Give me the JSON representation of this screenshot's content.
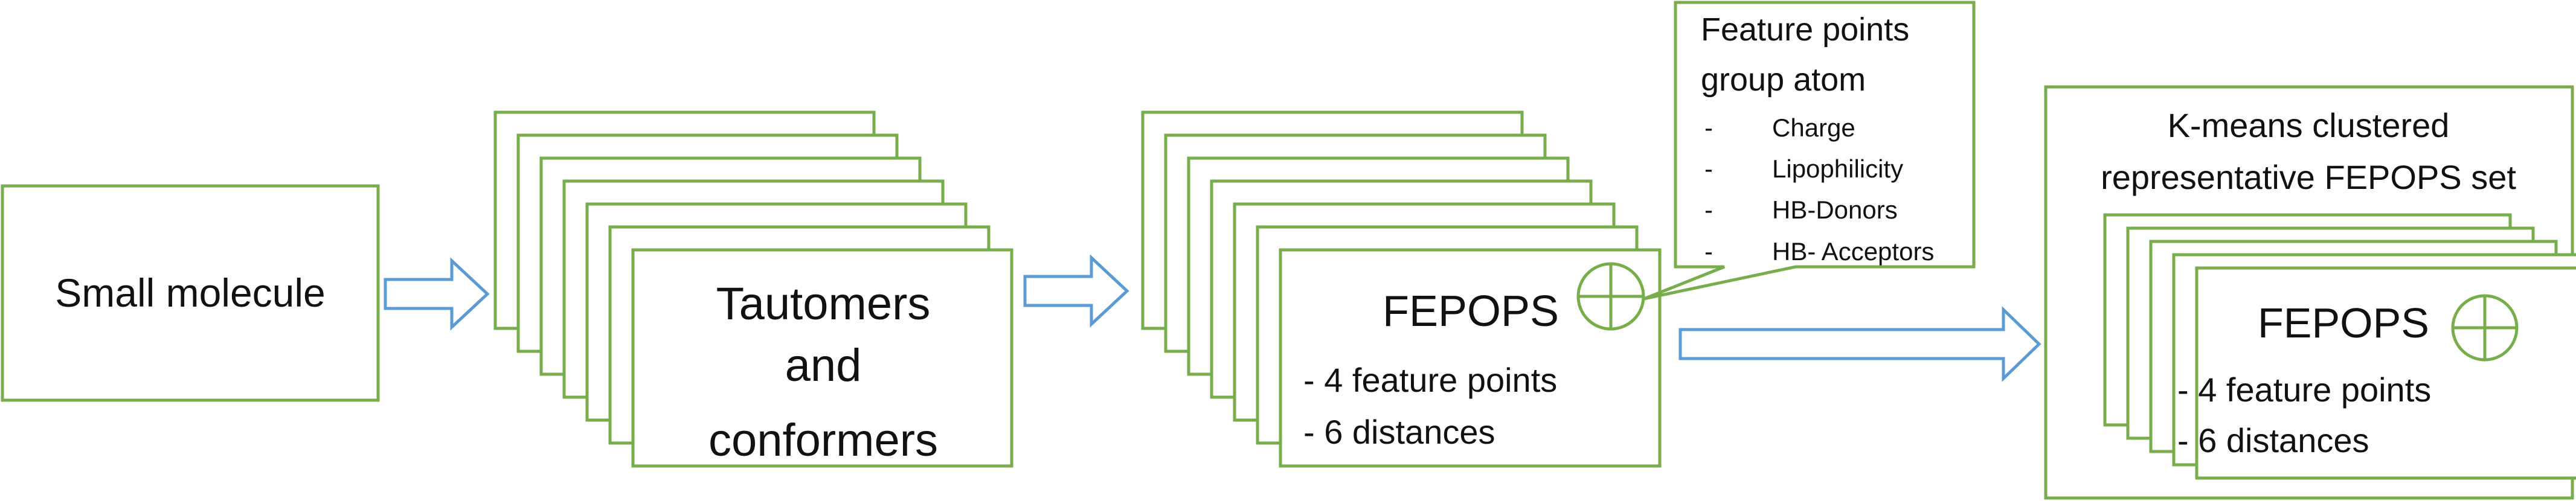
{
  "colors": {
    "box_stroke": "#77ad4a",
    "arrow_stroke": "#5b9bd5",
    "arrow_fill": "#ffffff",
    "text": "#111111"
  },
  "icons": {
    "fepops": "circled-plus-icon",
    "arrow": "right-block-arrow-icon"
  },
  "nodes": {
    "small_molecule": {
      "label": "Small molecule"
    },
    "tautomers": {
      "line1": "Tautomers",
      "line2": "and",
      "line3": "conformers"
    },
    "fepops_main": {
      "title": "FEPOPS",
      "item1": "- 4 feature points",
      "item2": "- 6 distances"
    },
    "feature_callout": {
      "title_line1": "Feature points",
      "title_line2": "group atom",
      "bullet": "-",
      "items": [
        "Charge",
        "Lipophilicity",
        "HB-Donors",
        "HB- Acceptors"
      ]
    },
    "kmeans": {
      "title_line1": "K-means clustered",
      "title_line2": "representative FEPOPS set",
      "inner": {
        "title": "FEPOPS",
        "item1": "- 4 feature points",
        "item2": "- 6 distances"
      }
    }
  }
}
